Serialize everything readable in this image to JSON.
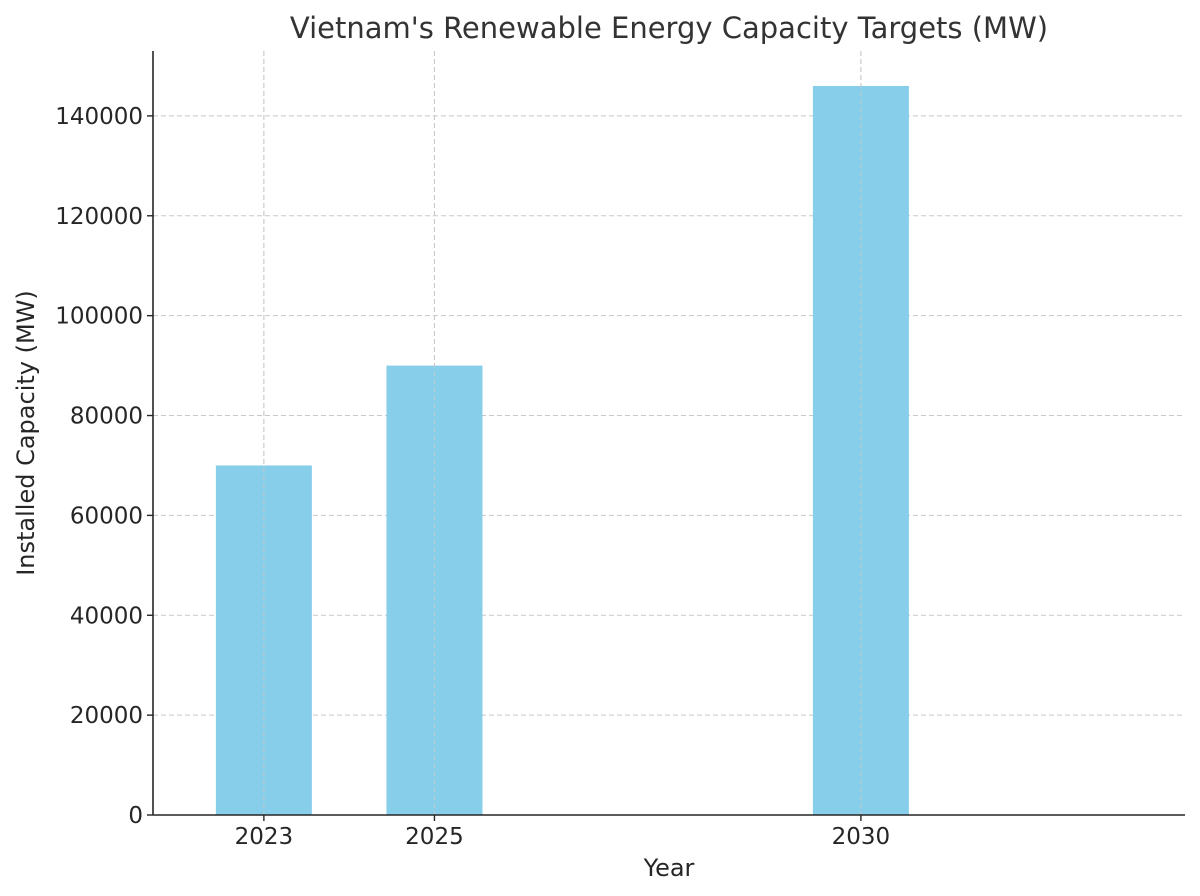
{
  "chart_data": {
    "type": "bar",
    "title": "Vietnam's Renewable Energy Capacity Targets (MW)",
    "xlabel": "Year",
    "ylabel": "Installed Capacity (MW)",
    "x": [
      2023,
      2025,
      2030
    ],
    "categories": [
      "2023",
      "2025",
      "2030"
    ],
    "values": [
      70000,
      90000,
      146000
    ],
    "xlim": [
      2021.7,
      2033.8
    ],
    "ylim": [
      0,
      153000
    ],
    "yticks": [
      0,
      20000,
      40000,
      60000,
      80000,
      100000,
      120000,
      140000
    ],
    "ytick_labels": [
      "0",
      "20000",
      "40000",
      "60000",
      "80000",
      "100000",
      "120000",
      "140000"
    ],
    "grid": true,
    "bar_color": "#87CEEB"
  }
}
